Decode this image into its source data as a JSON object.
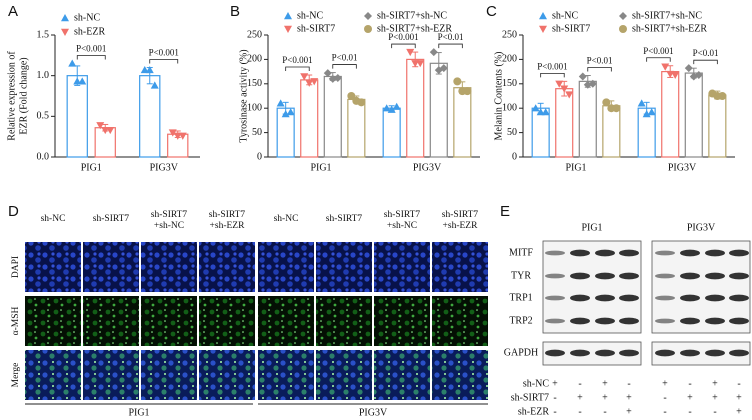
{
  "chart_data": [
    {
      "type": "bar",
      "panel_label": "A",
      "y_label": [
        "Relative expression of",
        "EZR (Fold change)"
      ],
      "categories": [
        "PIG1",
        "PIG3V"
      ],
      "series": [
        {
          "name": "sh-NC",
          "color": "#3d9be9",
          "marker": "triangle-up",
          "values": [
            1.0,
            1.0
          ],
          "errors": [
            0.12,
            0.1
          ],
          "points": [
            [
              1.15,
              0.93,
              0.93
            ],
            [
              1.07,
              1.07,
              0.88
            ]
          ]
        },
        {
          "name": "sh-EZR",
          "color": "#f0726b",
          "marker": "triangle-down",
          "values": [
            0.36,
            0.28
          ],
          "errors": [
            0.04,
            0.04
          ],
          "points": [
            [
              0.39,
              0.33,
              0.33
            ],
            [
              0.3,
              0.26,
              0.26
            ]
          ]
        }
      ],
      "significance": [
        [
          "P<0.001"
        ],
        [
          "P<0.001"
        ]
      ],
      "ylim": [
        0,
        1.5
      ],
      "yticks": [
        {
          "value": 0,
          "label": "0.0"
        },
        {
          "value": 0.5,
          "label": "0.5"
        },
        {
          "value": 1,
          "label": "1.0"
        },
        {
          "value": 1.5,
          "label": "1.5"
        }
      ],
      "legend": "top"
    },
    {
      "type": "bar",
      "panel_label": "B",
      "y_label": [
        "Tyrosinase activity (%)"
      ],
      "categories": [
        "PIG1",
        "PIG3V"
      ],
      "series": [
        {
          "name": "sh-NC",
          "color": "#3d9be9",
          "marker": "triangle-up",
          "values": [
            100,
            100
          ],
          "errors": [
            12,
            5
          ],
          "points": [
            [
              110,
              88,
              92
            ],
            [
              100,
              97,
              103
            ]
          ]
        },
        {
          "name": "sh-SIRT7",
          "color": "#f0726b",
          "marker": "triangle-down",
          "values": [
            158,
            200
          ],
          "errors": [
            10,
            15
          ],
          "points": [
            [
              165,
              152,
              155
            ],
            [
              215,
              192,
              192
            ]
          ]
        },
        {
          "name": "sh-SIRT7+sh-NC",
          "color": "#888888",
          "marker": "diamond",
          "values": [
            165,
            192
          ],
          "errors": [
            8,
            22
          ],
          "points": [
            [
              172,
              160,
              162
            ],
            [
              215,
              178,
              182
            ]
          ]
        },
        {
          "name": "sh-SIRT7+sh-EZR",
          "color": "#b5a46a",
          "marker": "circle",
          "values": [
            118,
            142
          ],
          "errors": [
            7,
            12
          ],
          "points": [
            [
              125,
              115,
              112
            ],
            [
              155,
              135,
              135
            ]
          ]
        }
      ],
      "significance": [
        [
          "P<0.001",
          "P<0.01"
        ],
        [
          "P<0.001",
          "P<0.01"
        ]
      ],
      "ylim": [
        0,
        250
      ],
      "yticks": [
        0,
        50,
        100,
        150,
        200,
        250
      ],
      "legend": "top"
    },
    {
      "type": "bar",
      "panel_label": "C",
      "y_label": [
        "Melanin Contents (%)"
      ],
      "categories": [
        "PIG1",
        "PIG3V"
      ],
      "series": [
        {
          "name": "sh-NC",
          "color": "#3d9be9",
          "marker": "triangle-up",
          "values": [
            100,
            100
          ],
          "errors": [
            10,
            12
          ],
          "points": [
            [
              100,
              92,
              92
            ],
            [
              110,
              88,
              92
            ]
          ]
        },
        {
          "name": "sh-SIRT7",
          "color": "#f0726b",
          "marker": "triangle-down",
          "values": [
            140,
            175
          ],
          "errors": [
            15,
            12
          ],
          "points": [
            [
              150,
              140,
              128
            ],
            [
              185,
              170,
              168
            ]
          ]
        },
        {
          "name": "sh-SIRT7+sh-NC",
          "color": "#888888",
          "marker": "diamond",
          "values": [
            155,
            172
          ],
          "errors": [
            12,
            10
          ],
          "points": [
            [
              165,
              148,
              150
            ],
            [
              182,
              165,
              168
            ]
          ]
        },
        {
          "name": "sh-SIRT7+sh-EZR",
          "color": "#b5a46a",
          "marker": "circle",
          "values": [
            105,
            127
          ],
          "errors": [
            10,
            8
          ],
          "points": [
            [
              112,
              100,
              100
            ],
            [
              130,
              125,
              125
            ]
          ]
        }
      ],
      "significance": [
        [
          "P<0.001",
          "P<0.01"
        ],
        [
          "P<0.001",
          "P<0.01"
        ]
      ],
      "ylim": [
        0,
        250
      ],
      "yticks": [
        0,
        50,
        100,
        150,
        200,
        250
      ],
      "legend": "top"
    }
  ],
  "panel_d": {
    "panel_label": "D",
    "column_headers": [
      [
        "sh-NC"
      ],
      [
        "sh-SIRT7"
      ],
      [
        "sh-SIRT7",
        "+sh-NC"
      ],
      [
        "sh-SIRT7",
        "+sh-EZR"
      ],
      [
        "sh-NC"
      ],
      [
        "sh-SIRT7"
      ],
      [
        "sh-SIRT7",
        "+sh-NC"
      ],
      [
        "sh-SIRT7",
        "+sh-EZR"
      ]
    ],
    "row_labels": [
      "DAPI",
      "α-MSH",
      "Merge"
    ],
    "groups": [
      "PIG1",
      "PIG3V"
    ]
  },
  "panel_e": {
    "panel_label": "E",
    "groups": [
      "PIG1",
      "PIG3V"
    ],
    "proteins": [
      "MITF",
      "TYR",
      "TRP1",
      "TRP2",
      "GAPDH"
    ],
    "conditions": [
      {
        "name": "sh-NC",
        "signs": [
          "+",
          "-",
          "+",
          "-",
          "+",
          "-",
          "+",
          "-"
        ]
      },
      {
        "name": "sh-SIRT7",
        "signs": [
          "-",
          "+",
          "+",
          "+",
          "-",
          "+",
          "+",
          "+"
        ]
      },
      {
        "name": "sh-EZR",
        "signs": [
          "-",
          "-",
          "-",
          "+",
          "-",
          "-",
          "-",
          "+"
        ]
      }
    ]
  }
}
